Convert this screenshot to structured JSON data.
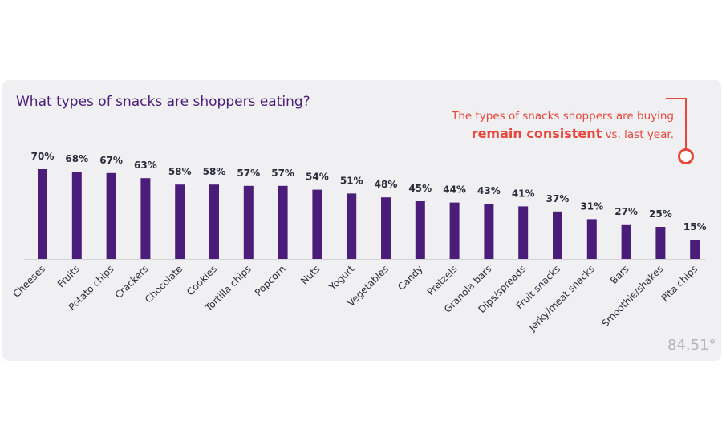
{
  "title": "What types of snacks are shoppers eating?",
  "callout": {
    "line1": "The types of snacks shoppers are buying",
    "highlight": "remain consistent",
    "line2_tail": " vs. last year."
  },
  "logo": "84.51°",
  "colors": {
    "bar": "#4b1d7a",
    "title": "#4b1d7a",
    "accent": "#e8473c",
    "panel": "#f0f0f2"
  },
  "chart_data": {
    "type": "bar",
    "title": "What types of snacks are shoppers eating?",
    "categories": [
      "Cheeses",
      "Fruits",
      "Potato chips",
      "Crackers",
      "Chocolate",
      "Cookies",
      "Tortilla chips",
      "Popcorn",
      "Nuts",
      "Yogurt",
      "Vegetables",
      "Candy",
      "Pretzels",
      "Granola bars",
      "Dips/spreads",
      "Fruit snacks",
      "Jerky/meat snacks",
      "Bars",
      "Smoothie/shakes",
      "Pita chips"
    ],
    "values": [
      70,
      68,
      67,
      63,
      58,
      58,
      57,
      57,
      54,
      51,
      48,
      45,
      44,
      43,
      41,
      37,
      31,
      27,
      25,
      15
    ],
    "value_labels": [
      "70%",
      "68%",
      "67%",
      "63%",
      "58%",
      "58%",
      "57%",
      "57%",
      "54%",
      "51%",
      "48%",
      "45%",
      "44%",
      "43%",
      "41%",
      "37%",
      "31%",
      "27%",
      "25%",
      "15%"
    ],
    "unit": "%",
    "xlabel": "",
    "ylabel": "",
    "ylim": [
      0,
      100
    ],
    "grid": false,
    "legend": "none"
  }
}
